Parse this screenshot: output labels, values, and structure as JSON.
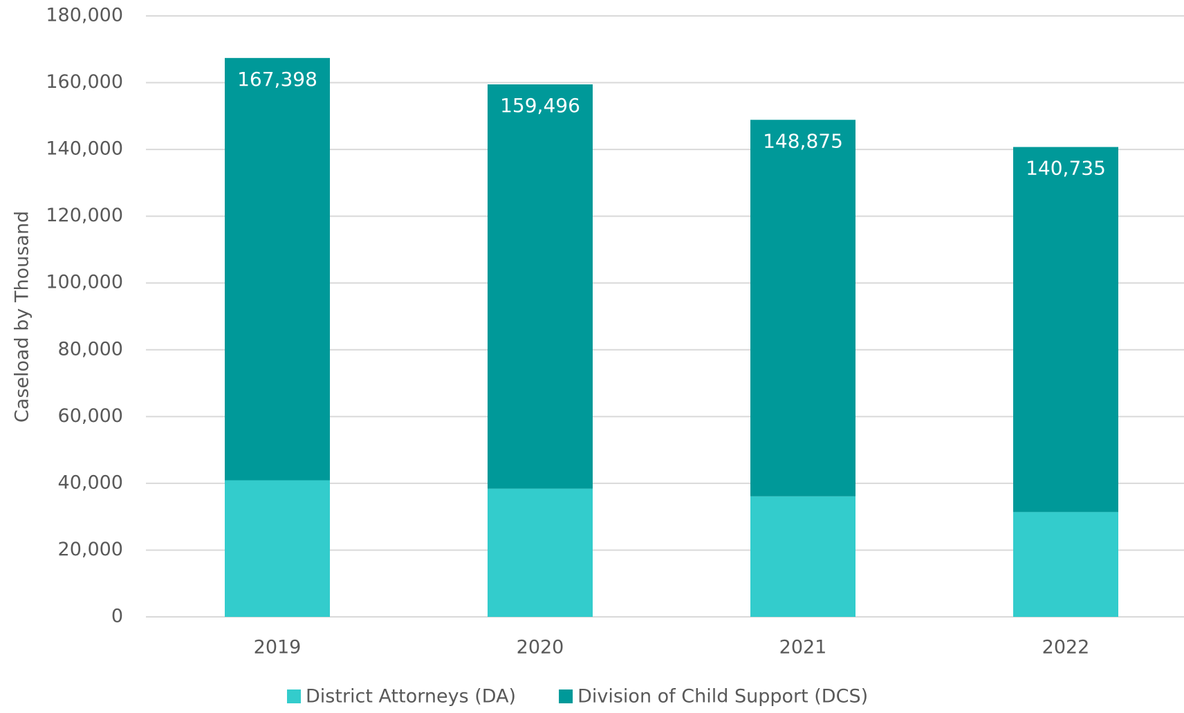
{
  "chart_data": {
    "type": "stacked_bar",
    "y_label": "Caseload by Thousand",
    "categories": [
      "2019",
      "2020",
      "2021",
      "2022"
    ],
    "series": [
      {
        "name": "District Attorneys (DA)",
        "color": "#33cccc",
        "values": [
          40900,
          38400,
          36100,
          31400
        ]
      },
      {
        "name": "Division of Child Support (DCS)",
        "color": "#009999",
        "values": [
          126498,
          121096,
          112775,
          109335
        ]
      }
    ],
    "totals": [
      167398,
      159496,
      148875,
      140735
    ],
    "total_labels": [
      "167,398",
      "159,496",
      "148,875",
      "140,735"
    ],
    "ylim": [
      0,
      180000
    ],
    "yticks": [
      0,
      {
        "value": 20000,
        "label": "20,000"
      },
      {
        "value": 40000,
        "label": "40,000"
      },
      {
        "value": 60000,
        "label": "60,000"
      },
      {
        "value": 80000,
        "label": "80,000"
      },
      {
        "value": 100000,
        "label": "100,000"
      },
      {
        "value": 120000,
        "label": "120,000"
      },
      {
        "value": 140000,
        "label": "140,000"
      },
      {
        "value": 160000,
        "label": "160,000"
      },
      {
        "value": 180000,
        "label": "180,000"
      }
    ],
    "grid": true,
    "legend": "bottom"
  }
}
